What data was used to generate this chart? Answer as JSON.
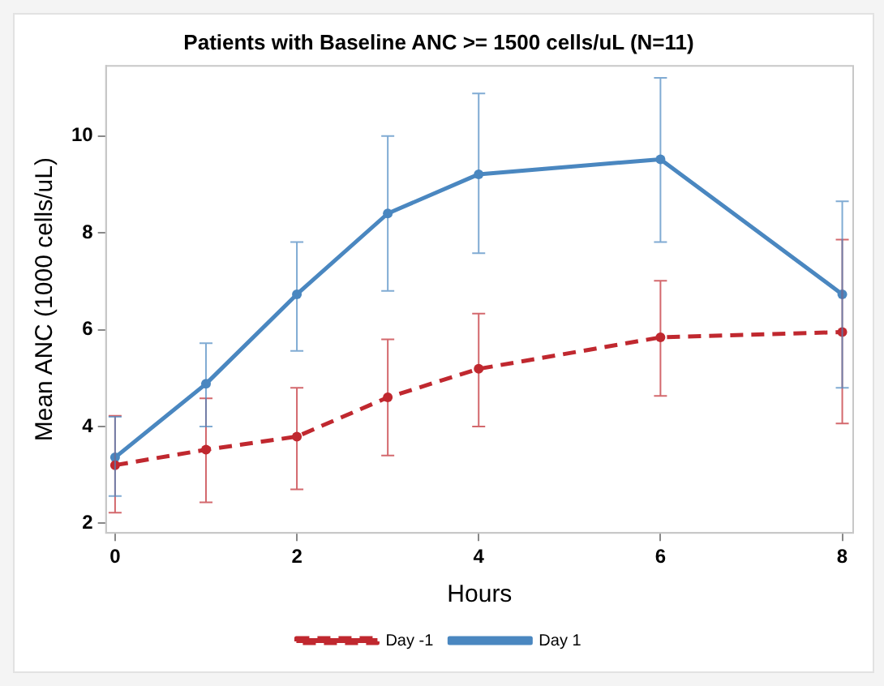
{
  "chart_data": {
    "type": "line",
    "title": "Patients with Baseline ANC >= 1500 cells/uL (N=11)",
    "xlabel": "Hours",
    "ylabel": "Mean ANC (1000 cells/uL)",
    "x": [
      0,
      1,
      2,
      3,
      4,
      6,
      8
    ],
    "series": [
      {
        "name": "Day -1",
        "color": "#c0282f",
        "line_style": "dashed",
        "values": [
          3.2,
          3.52,
          3.79,
          4.6,
          5.19,
          5.84,
          5.95
        ],
        "errors": [
          [
            2.22,
            4.22
          ],
          [
            2.43,
            4.58
          ],
          [
            2.7,
            4.8
          ],
          [
            3.4,
            5.8
          ],
          [
            4.0,
            6.33
          ],
          [
            4.63,
            7.01
          ],
          [
            4.06,
            7.86
          ]
        ]
      },
      {
        "name": "Day 1",
        "color": "#4a87c0",
        "line_style": "solid",
        "values": [
          3.36,
          4.88,
          6.73,
          8.4,
          9.21,
          9.52,
          6.73
        ],
        "errors": [
          [
            2.56,
            4.2
          ],
          [
            4.0,
            5.72
          ],
          [
            5.56,
            7.81
          ],
          [
            6.8,
            10.0
          ],
          [
            7.58,
            10.88
          ],
          [
            7.81,
            11.2
          ],
          [
            4.8,
            8.65
          ]
        ]
      }
    ],
    "xlim": [
      -0.1,
      8.12
    ],
    "ylim": [
      1.8,
      11.45
    ],
    "xticks": [
      0,
      2,
      4,
      6,
      8
    ],
    "yticks": [
      2,
      4,
      6,
      8,
      10
    ],
    "marker": "circle",
    "grid": false,
    "legend": "bottom"
  }
}
